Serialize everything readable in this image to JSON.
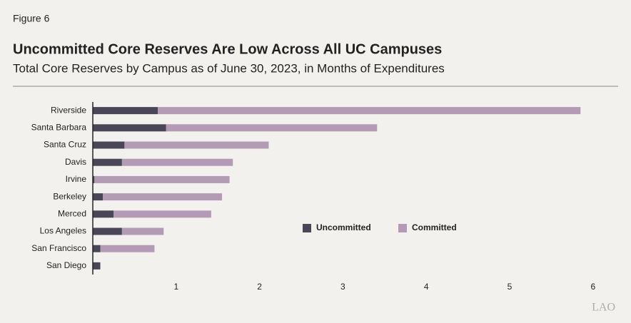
{
  "figure_label": "Figure 6",
  "logo": "LAO",
  "chart_data": {
    "type": "bar",
    "orientation": "horizontal",
    "stacked": true,
    "title": "Uncommitted Core Reserves Are Low Across All UC Campuses",
    "subtitle": "Total Core Reserves by Campus as of June 30, 2023, in Months of Expenditures",
    "categories": [
      "Riverside",
      "Santa Barbara",
      "Santa Cruz",
      "Davis",
      "Irvine",
      "Berkeley",
      "Merced",
      "Los Angeles",
      "San Francisco",
      "San Diego"
    ],
    "series": [
      {
        "name": "Uncommitted",
        "color": "#4a4658",
        "values": [
          0.78,
          0.88,
          0.38,
          0.35,
          0.02,
          0.12,
          0.25,
          0.35,
          0.09,
          0.09
        ]
      },
      {
        "name": "Committed",
        "color": "#b49bb5",
        "values": [
          5.07,
          2.53,
          1.73,
          1.33,
          1.62,
          1.43,
          1.17,
          0.5,
          0.65,
          0
        ]
      }
    ],
    "xlim": [
      0,
      6.1
    ],
    "xticks": [
      1,
      2,
      3,
      4,
      5,
      6
    ],
    "grid": false,
    "legend_position": "center"
  }
}
